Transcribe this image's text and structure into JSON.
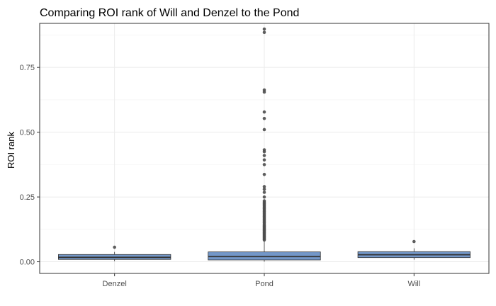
{
  "chart_data": {
    "type": "boxplot",
    "title": "Comparing ROI rank of Will and Denzel to the Pond",
    "xlabel": "",
    "ylabel": "ROI rank",
    "categories": [
      "Denzel",
      "Pond",
      "Will"
    ],
    "ylim": [
      -0.045,
      0.92
    ],
    "yticks": [
      0.0,
      0.25,
      0.5,
      0.75
    ],
    "ytick_labels": [
      "0.00",
      "0.25",
      "0.50",
      "0.75"
    ],
    "grid": true,
    "box_color": "#7397c8",
    "outlier_color": "#4d4d4d",
    "boxes": [
      {
        "category": "Denzel",
        "whisker_low": 0.002,
        "q1": 0.009,
        "median": 0.017,
        "q3": 0.028,
        "whisker_high": 0.038,
        "outliers": [
          0.056
        ]
      },
      {
        "category": "Pond",
        "whisker_low": 0.0,
        "q1": 0.007,
        "median": 0.02,
        "q3": 0.038,
        "whisker_high": 0.08,
        "outliers": [
          0.084,
          0.088,
          0.092,
          0.096,
          0.1,
          0.104,
          0.108,
          0.112,
          0.116,
          0.12,
          0.124,
          0.128,
          0.132,
          0.136,
          0.14,
          0.145,
          0.15,
          0.155,
          0.16,
          0.165,
          0.17,
          0.175,
          0.18,
          0.185,
          0.19,
          0.195,
          0.2,
          0.205,
          0.21,
          0.215,
          0.22,
          0.225,
          0.23,
          0.235,
          0.25,
          0.268,
          0.28,
          0.29,
          0.337,
          0.375,
          0.393,
          0.41,
          0.425,
          0.432,
          0.51,
          0.553,
          0.578,
          0.655,
          0.663,
          0.885,
          0.898
        ]
      },
      {
        "category": "Will",
        "whisker_low": 0.008,
        "q1": 0.016,
        "median": 0.027,
        "q3": 0.039,
        "whisker_high": 0.052,
        "outliers": [
          0.078
        ]
      }
    ]
  }
}
